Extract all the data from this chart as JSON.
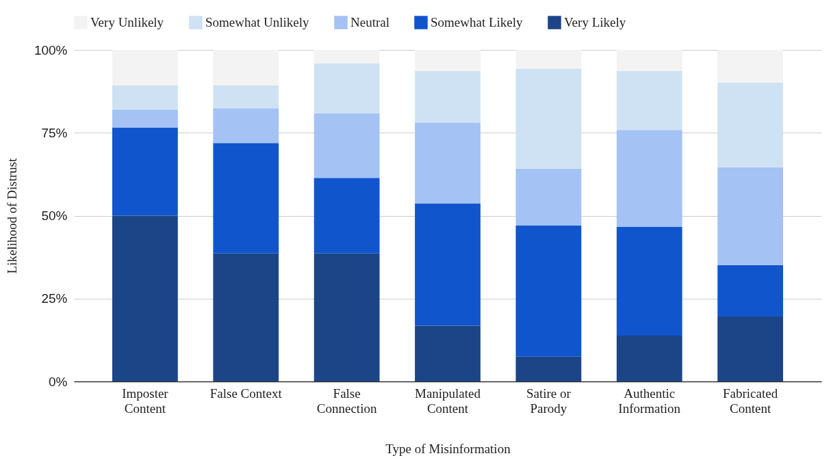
{
  "chart_data": {
    "type": "bar",
    "stacked": true,
    "xlabel": "Type of Misinformation",
    "ylabel": "Likelihood of Distrust",
    "categories": [
      "Imposter Content",
      "False Context",
      "False Connection",
      "Manipulated Content",
      "Satire or Parody",
      "Authentic Information",
      "Fabricated Content"
    ],
    "series": [
      {
        "name": "Very Likely",
        "color": "#1c4587",
        "values": [
          50,
          38.6,
          38.6,
          16.8,
          7.5,
          13.8,
          19.6
        ]
      },
      {
        "name": "Somewhat Likely",
        "color": "#1155cc",
        "values": [
          26.6,
          33.3,
          22.8,
          36.9,
          39.5,
          32.8,
          15.5
        ]
      },
      {
        "name": "Neutral",
        "color": "#a4c2f4",
        "values": [
          5.4,
          10.5,
          19.5,
          24.4,
          17.2,
          29.2,
          29.5
        ]
      },
      {
        "name": "Somewhat Unlikely",
        "color": "#cfe2f3",
        "values": [
          7.3,
          6.9,
          15.0,
          15.5,
          30.2,
          17.8,
          25.5
        ]
      },
      {
        "name": "Very Unlikely",
        "color": "#f3f3f3",
        "values": [
          10.7,
          10.7,
          4.1,
          6.4,
          5.6,
          6.4,
          9.9
        ]
      }
    ],
    "ylim": [
      0,
      100
    ],
    "yticks": [
      {
        "value": 0,
        "label": "0%"
      },
      {
        "value": 25,
        "label": "25%"
      },
      {
        "value": 50,
        "label": "50%"
      },
      {
        "value": 75,
        "label": "75%"
      },
      {
        "value": 100,
        "label": "100%"
      }
    ],
    "grid": "y",
    "legend": "top"
  }
}
